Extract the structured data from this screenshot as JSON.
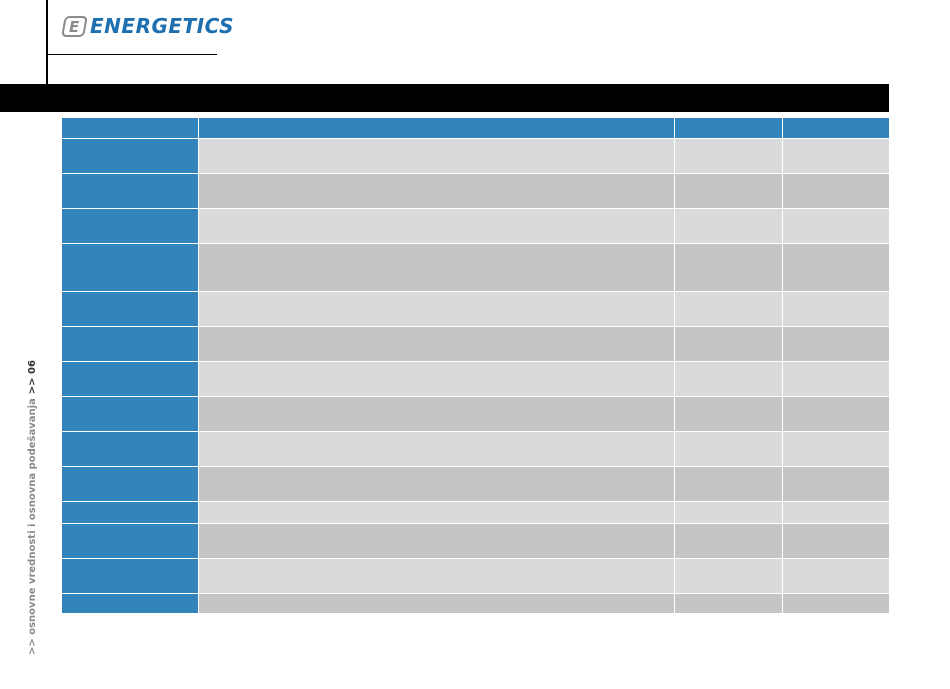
{
  "header": {
    "logo": "ENERGETICS"
  },
  "side": {
    "section": ">> osnovne vrednosti i osnovna podešavanja",
    "page": ">> 06"
  }
}
